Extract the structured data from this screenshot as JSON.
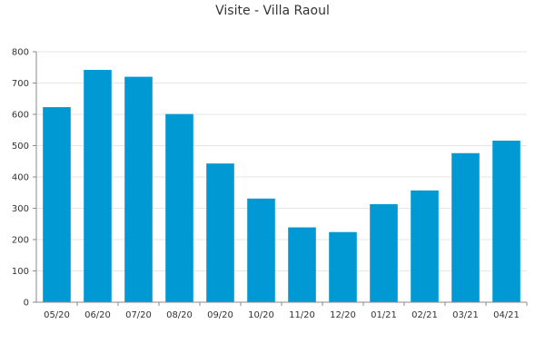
{
  "chart_data": {
    "type": "bar",
    "title": "Visite - Villa Raoul",
    "categories": [
      "05/20",
      "06/20",
      "07/20",
      "08/20",
      "09/20",
      "10/20",
      "11/20",
      "12/20",
      "01/21",
      "02/21",
      "03/21",
      "04/21"
    ],
    "values": [
      623,
      742,
      720,
      601,
      443,
      331,
      239,
      224,
      313,
      357,
      476,
      516
    ],
    "ylim": [
      0,
      800
    ],
    "yticks": [
      0,
      100,
      200,
      300,
      400,
      500,
      600,
      700,
      800
    ],
    "grid": true,
    "legend": "none",
    "xlabel": "",
    "ylabel": "",
    "colors": {
      "bar": "#0099D3",
      "grid": "#E6E6E6",
      "axis": "#888888",
      "text": "#333333"
    }
  }
}
